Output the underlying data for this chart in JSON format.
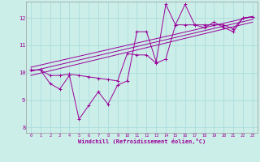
{
  "xlabel": "Windchill (Refroidissement éolien,°C)",
  "bg_color": "#cceee8",
  "line_color": "#990099",
  "grid_color": "#aadddd",
  "xlim": [
    -0.5,
    23.5
  ],
  "ylim": [
    7.8,
    12.6
  ],
  "xticks": [
    0,
    1,
    2,
    3,
    4,
    5,
    6,
    7,
    8,
    9,
    10,
    11,
    12,
    13,
    14,
    15,
    16,
    17,
    18,
    19,
    20,
    21,
    22,
    23
  ],
  "yticks": [
    8,
    9,
    10,
    11,
    12
  ],
  "series1_x": [
    0,
    1,
    2,
    3,
    4,
    5,
    6,
    7,
    8,
    9,
    10,
    11,
    12,
    13,
    14,
    15,
    16,
    17,
    18,
    19,
    20,
    21,
    22,
    23
  ],
  "series1_y": [
    10.1,
    10.1,
    9.6,
    9.4,
    9.9,
    8.3,
    8.8,
    9.3,
    8.85,
    9.55,
    9.7,
    11.5,
    11.5,
    10.4,
    12.5,
    11.75,
    12.5,
    11.75,
    11.65,
    11.85,
    11.65,
    11.5,
    12.0,
    12.05
  ],
  "series2_x": [
    0,
    1,
    2,
    3,
    4,
    5,
    6,
    7,
    8,
    9,
    10,
    11,
    12,
    13,
    14,
    15,
    16,
    17,
    18,
    19,
    20,
    21,
    22,
    23
  ],
  "series2_y": [
    10.1,
    10.1,
    9.9,
    9.9,
    9.95,
    9.9,
    9.85,
    9.8,
    9.75,
    9.7,
    10.7,
    10.65,
    10.65,
    10.35,
    10.5,
    11.75,
    11.75,
    11.75,
    11.75,
    11.75,
    11.75,
    11.6,
    12.0,
    12.05
  ],
  "trend1_x": [
    0,
    23
  ],
  "trend1_y": [
    9.9,
    11.85
  ],
  "trend2_x": [
    0,
    23
  ],
  "trend2_y": [
    10.05,
    11.95
  ],
  "trend3_x": [
    0,
    23
  ],
  "trend3_y": [
    10.2,
    12.05
  ]
}
